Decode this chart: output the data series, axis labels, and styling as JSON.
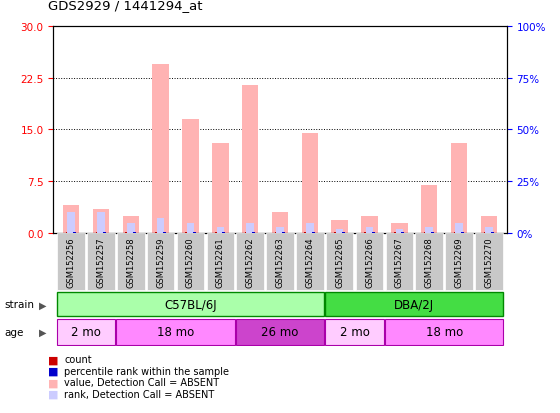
{
  "title": "GDS2929 / 1441294_at",
  "samples": [
    "GSM152256",
    "GSM152257",
    "GSM152258",
    "GSM152259",
    "GSM152260",
    "GSM152261",
    "GSM152262",
    "GSM152263",
    "GSM152264",
    "GSM152265",
    "GSM152266",
    "GSM152267",
    "GSM152268",
    "GSM152269",
    "GSM152270"
  ],
  "absent_value": [
    4.0,
    3.5,
    2.5,
    24.5,
    16.5,
    13.0,
    21.5,
    3.0,
    14.5,
    1.8,
    2.5,
    1.5,
    7.0,
    13.0,
    2.5
  ],
  "absent_rank_pct": [
    10,
    10,
    5,
    7,
    5,
    3,
    5,
    3,
    5,
    2,
    3,
    2,
    3,
    5,
    3
  ],
  "count_values": [
    0.15,
    0.15,
    0.1,
    0.15,
    0.15,
    0.1,
    0.15,
    0.1,
    0.15,
    0.08,
    0.1,
    0.08,
    0.1,
    0.15,
    0.1
  ],
  "rank_values_pct": [
    0.5,
    0.5,
    0.3,
    0.5,
    0.5,
    0.3,
    0.5,
    0.3,
    0.5,
    0.2,
    0.3,
    0.2,
    0.3,
    0.5,
    0.3
  ],
  "ylim_left": [
    0,
    30
  ],
  "ylim_right": [
    0,
    100
  ],
  "yticks_left": [
    0,
    7.5,
    15,
    22.5,
    30
  ],
  "yticks_right": [
    0,
    25,
    50,
    75,
    100
  ],
  "strain_groups": [
    {
      "label": "C57BL/6J",
      "start": 0,
      "end": 9,
      "color": "#AAFFAA"
    },
    {
      "label": "DBA/2J",
      "start": 9,
      "end": 15,
      "color": "#44DD44"
    }
  ],
  "age_groups": [
    {
      "label": "2 mo",
      "start": 0,
      "end": 2,
      "color": "#FFCCFF"
    },
    {
      "label": "18 mo",
      "start": 2,
      "end": 6,
      "color": "#FF88FF"
    },
    {
      "label": "26 mo",
      "start": 6,
      "end": 9,
      "color": "#CC44CC"
    },
    {
      "label": "2 mo",
      "start": 9,
      "end": 11,
      "color": "#FFCCFF"
    },
    {
      "label": "18 mo",
      "start": 11,
      "end": 15,
      "color": "#FF88FF"
    }
  ],
  "absent_bar_color": "#FFB3B3",
  "absent_rank_color": "#CCCCFF",
  "count_color": "#CC0000",
  "rank_color": "#0000CC",
  "label_bg": "#C8C8C8",
  "grid_color": "#000000"
}
